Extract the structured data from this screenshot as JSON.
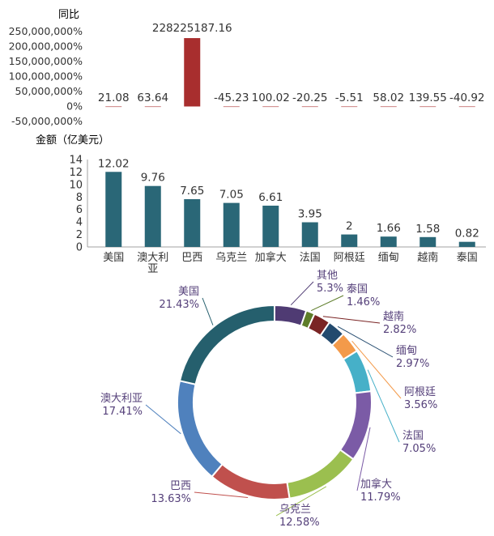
{
  "colors": {
    "growth_bar": "#a82e2e",
    "amount_bar": "#2a6777",
    "axis": "#a0a0a0",
    "text": "#333333",
    "label_dark": "#55407a"
  },
  "chart_data": [
    {
      "type": "bar",
      "title": "同比",
      "unit": "%",
      "categories": [
        "美国",
        "澳大利亚",
        "巴西",
        "乌克兰",
        "加拿大",
        "法国",
        "阿根廷",
        "缅甸",
        "越南",
        "泰国"
      ],
      "values": [
        21.08,
        63.64,
        228225187.16,
        -45.23,
        100.02,
        -20.25,
        -5.51,
        58.02,
        139.55,
        -40.92
      ],
      "value_labels": [
        "21.08",
        "63.64",
        "228225187.16",
        "-45.23",
        "100.02",
        "-20.25",
        "-5.51",
        "58.02",
        "139.55",
        "-40.92"
      ],
      "ylim": [
        -50000000,
        250000000
      ],
      "yticks": [
        250000000,
        200000000,
        150000000,
        100000000,
        50000000,
        0,
        -50000000
      ],
      "ytick_labels": [
        "250,000,000%",
        "200,000,000%",
        "150,000,000%",
        "100,000,000%",
        "50,000,000%",
        "0%",
        "-50,000,000%"
      ],
      "grid": false
    },
    {
      "type": "bar",
      "ylabel": "金额（亿美元）",
      "categories": [
        "美国",
        "澳大利亚",
        "巴西",
        "乌克兰",
        "加拿大",
        "法国",
        "阿根廷",
        "缅甸",
        "越南",
        "泰国"
      ],
      "category_labels": [
        [
          "美国"
        ],
        [
          "澳大利",
          "亚"
        ],
        [
          "巴西"
        ],
        [
          "乌克兰"
        ],
        [
          "加拿大"
        ],
        [
          "法国"
        ],
        [
          "阿根廷"
        ],
        [
          "缅甸"
        ],
        [
          "越南"
        ],
        [
          "泰国"
        ]
      ],
      "values": [
        12.02,
        9.76,
        7.65,
        7.05,
        6.61,
        3.95,
        2,
        1.66,
        1.58,
        0.82
      ],
      "value_labels": [
        "12.02",
        "9.76",
        "7.65",
        "7.05",
        "6.61",
        "3.95",
        "2",
        "1.66",
        "1.58",
        "0.82"
      ],
      "ylim": [
        0,
        14
      ],
      "yticks": [
        0,
        2,
        4,
        6,
        8,
        10,
        12,
        14
      ],
      "grid": false
    },
    {
      "type": "pie",
      "donut": true,
      "slices": [
        {
          "label": "其他",
          "value": 5.3,
          "pct": "5.3%",
          "color": "#4f3b73"
        },
        {
          "label": "泰国",
          "value": 1.46,
          "pct": "1.46%",
          "color": "#5e7d2a"
        },
        {
          "label": "越南",
          "value": 2.82,
          "pct": "2.82%",
          "color": "#7a2424"
        },
        {
          "label": "缅甸",
          "value": 2.97,
          "pct": "2.97%",
          "color": "#234a6e"
        },
        {
          "label": "阿根廷",
          "value": 3.56,
          "pct": "3.56%",
          "color": "#f39a4a"
        },
        {
          "label": "法国",
          "value": 7.05,
          "pct": "7.05%",
          "color": "#46b0c8"
        },
        {
          "label": "加拿大",
          "value": 11.79,
          "pct": "11.79%",
          "color": "#7b5ba6"
        },
        {
          "label": "乌克兰",
          "value": 12.58,
          "pct": "12.58%",
          "color": "#9bbf4f"
        },
        {
          "label": "巴西",
          "value": 13.63,
          "pct": "13.63%",
          "color": "#c0504d"
        },
        {
          "label": "澳大利亚",
          "value": 17.41,
          "pct": "17.41%",
          "color": "#4f81bd"
        },
        {
          "label": "美国",
          "value": 21.43,
          "pct": "21.43%",
          "color": "#255f6d"
        }
      ]
    }
  ]
}
